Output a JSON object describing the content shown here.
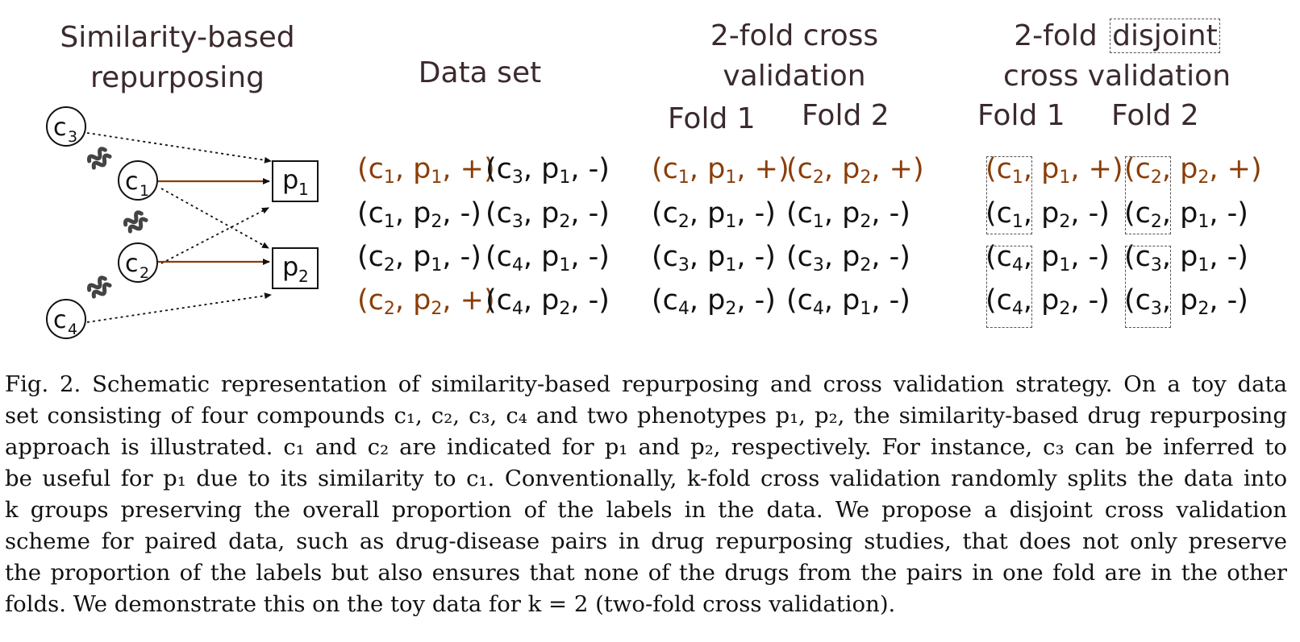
{
  "figure": {
    "colors": {
      "positive": "#8a3d07",
      "negative": "#111111",
      "heading": "#3b2a2d",
      "indication_edge": "#8a3d07",
      "similarity_edge": "#111111"
    },
    "similarity_panel": {
      "title_line1": "Similarity-based",
      "title_line2": "repurposing",
      "compounds": [
        {
          "base": "c",
          "sub": "3"
        },
        {
          "base": "c",
          "sub": "1"
        },
        {
          "base": "c",
          "sub": "2"
        },
        {
          "base": "c",
          "sub": "4"
        }
      ],
      "phenotypes": [
        {
          "base": "p",
          "sub": "1"
        },
        {
          "base": "p",
          "sub": "2"
        }
      ],
      "similarity_icon": "squiggle-icon"
    },
    "dataset": {
      "title": "Data set",
      "rows": [
        [
          {
            "c": "1",
            "p": "1",
            "label": "+"
          },
          {
            "c": "3",
            "p": "1",
            "label": "-"
          }
        ],
        [
          {
            "c": "1",
            "p": "2",
            "label": "-"
          },
          {
            "c": "3",
            "p": "2",
            "label": "-"
          }
        ],
        [
          {
            "c": "2",
            "p": "1",
            "label": "-"
          },
          {
            "c": "4",
            "p": "1",
            "label": "-"
          }
        ],
        [
          {
            "c": "2",
            "p": "2",
            "label": "+"
          },
          {
            "c": "4",
            "p": "2",
            "label": "-"
          }
        ]
      ]
    },
    "cv": {
      "title_line1": "2-fold cross",
      "title_line2": "validation",
      "fold1_label": "Fold 1",
      "fold2_label": "Fold 2",
      "fold1": [
        {
          "c": "1",
          "p": "1",
          "label": "+"
        },
        {
          "c": "2",
          "p": "1",
          "label": "-"
        },
        {
          "c": "3",
          "p": "1",
          "label": "-"
        },
        {
          "c": "4",
          "p": "2",
          "label": "-"
        }
      ],
      "fold2": [
        {
          "c": "2",
          "p": "2",
          "label": "+"
        },
        {
          "c": "1",
          "p": "2",
          "label": "-"
        },
        {
          "c": "3",
          "p": "2",
          "label": "-"
        },
        {
          "c": "4",
          "p": "1",
          "label": "-"
        }
      ]
    },
    "disjoint_cv": {
      "title_prefix": "2-fold",
      "title_boxed": "disjoint",
      "title_line2": "cross validation",
      "fold1_label": "Fold 1",
      "fold2_label": "Fold 2",
      "fold1": [
        {
          "c": "1",
          "p": "1",
          "label": "+"
        },
        {
          "c": "1",
          "p": "2",
          "label": "-"
        },
        {
          "c": "4",
          "p": "1",
          "label": "-"
        },
        {
          "c": "4",
          "p": "2",
          "label": "-"
        }
      ],
      "fold2": [
        {
          "c": "2",
          "p": "2",
          "label": "+"
        },
        {
          "c": "2",
          "p": "1",
          "label": "-"
        },
        {
          "c": "3",
          "p": "1",
          "label": "-"
        },
        {
          "c": "3",
          "p": "2",
          "label": "-"
        }
      ]
    }
  },
  "caption": {
    "lines": [
      "Fig. 2.   Schematic representation of similarity-based repurposing and cross validation strategy. On a toy data",
      "set consisting of four compounds c₁, c₂, c₃, c₄ and two phenotypes p₁, p₂, the similarity-based drug repurposing",
      "approach is illustrated. c₁ and c₂ are indicated for p₁ and p₂, respectively. For instance, c₃ can be inferred to",
      "be useful for p₁ due to its similarity to c₁. Conventionally, k-fold cross validation randomly splits the data into",
      "k groups preserving the overall proportion of the labels in the data. We propose a disjoint cross validation",
      "scheme for paired data, such as drug-disease pairs in drug repurposing studies, that does not only preserve",
      "the proportion of the labels but also ensures that none of the drugs from the pairs in one fold are in the other",
      "folds. We demonstrate this on the toy data for k = 2 (two-fold cross validation)."
    ]
  }
}
